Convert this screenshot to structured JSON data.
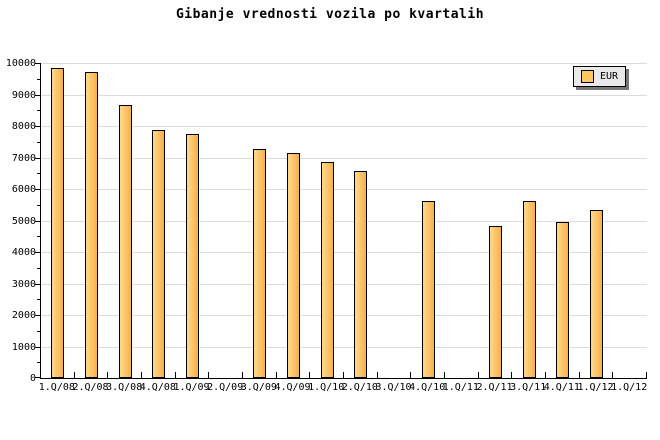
{
  "title": "Gibanje vrednosti vozila po kvartalih",
  "legend": {
    "label": "EUR",
    "swatch_color": "#FCC763",
    "background": "#E9E9E9",
    "shadow_color": "#777777"
  },
  "colors": {
    "background": "#FFFFFF",
    "bar_fill_light": "#FDD98C",
    "bar_fill_dark": "#F8B04A",
    "bar_border": "#000000",
    "gridline": "#DCDCDC",
    "axis": "#000000",
    "text": "#000000"
  },
  "chart_data": {
    "type": "bar",
    "title": "Gibanje vrednosti vozila po kvartalih",
    "series_name": "EUR",
    "categories": [
      "1.Q/08",
      "2.Q/08",
      "3.Q/08",
      "4.Q/08",
      "1.Q/09",
      "2.Q/09",
      "3.Q/09",
      "4.Q/09",
      "1.Q/10",
      "2.Q/10",
      "3.Q/10",
      "4.Q/10",
      "1.Q/11",
      "2.Q/11",
      "3.Q/11",
      "4.Q/11",
      "1.Q/12",
      "1.Q/12"
    ],
    "values": [
      9840,
      9700,
      8660,
      7870,
      7760,
      null,
      7260,
      7150,
      6860,
      6580,
      null,
      5620,
      null,
      4810,
      5620,
      4950,
      5320,
      null
    ],
    "xlabel": "",
    "ylabel": "",
    "ylim": [
      0,
      10000
    ],
    "ytick_interval": 1000,
    "yminor_tick_interval": 500,
    "ytick_labels": [
      "0",
      "1000",
      "2000",
      "3000",
      "4000",
      "5000",
      "6000",
      "7000",
      "8000",
      "9000",
      "10000"
    ],
    "grid": "horizontal",
    "legend_position": "top-right"
  }
}
